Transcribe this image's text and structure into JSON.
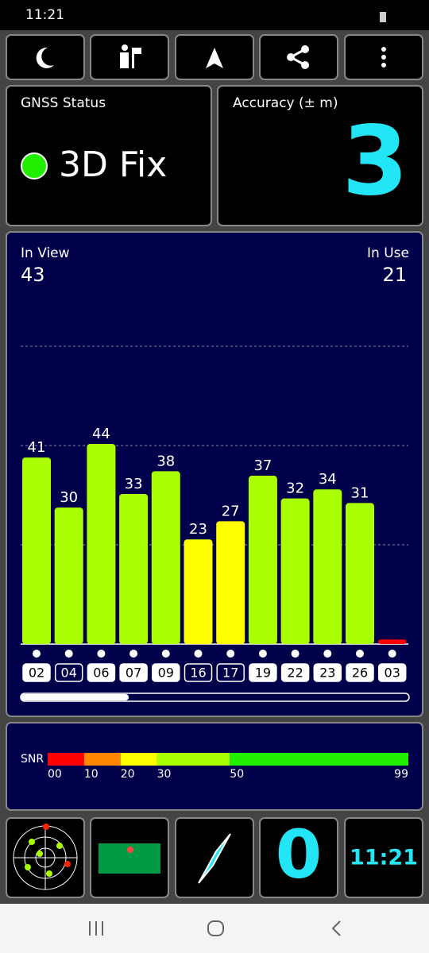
{
  "status_bar": {
    "time": "11:21"
  },
  "gnss_status": {
    "title": "GNSS Status",
    "value": "3D Fix"
  },
  "accuracy": {
    "title": "Accuracy (± m)",
    "value": "3"
  },
  "satellites": {
    "in_view_label": "In View",
    "in_view": 43,
    "in_use_label": "In Use",
    "in_use": 21
  },
  "chart_data": {
    "type": "bar",
    "categories": [
      "02",
      "04",
      "06",
      "07",
      "09",
      "16",
      "17",
      "19",
      "22",
      "23",
      "26",
      "03"
    ],
    "values": [
      41,
      30,
      44,
      33,
      38,
      23,
      27,
      37,
      32,
      34,
      31,
      1
    ],
    "value_labels": [
      "41",
      "30",
      "44",
      "33",
      "38",
      "23",
      "27",
      "37",
      "32",
      "34",
      "31",
      null
    ],
    "colors": [
      "#aaff00",
      "#aaff00",
      "#aaff00",
      "#aaff00",
      "#aaff00",
      "#ffff00",
      "#ffff00",
      "#aaff00",
      "#aaff00",
      "#aaff00",
      "#aaff00",
      "#ff0000"
    ],
    "filled_labels": [
      true,
      false,
      true,
      true,
      true,
      false,
      false,
      true,
      true,
      true,
      true,
      true
    ],
    "ylim": [
      0,
      70
    ]
  },
  "snr_scale": {
    "label": "SNR",
    "xlim": [
      0,
      99
    ],
    "ticks": [
      {
        "value": 0,
        "label": "00"
      },
      {
        "value": 10,
        "label": "10"
      },
      {
        "value": 20,
        "label": "20"
      },
      30,
      50,
      99
    ],
    "colors": [
      "#ff0000",
      "#ff8800",
      "#ffff00",
      "#aaff00",
      "#22ee00"
    ]
  },
  "tiles": {
    "count": "0",
    "clock": "11:21"
  }
}
